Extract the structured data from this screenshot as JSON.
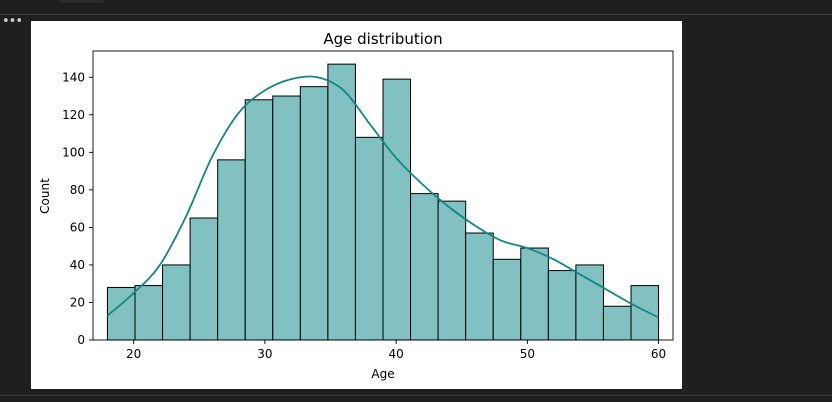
{
  "notebook": {
    "more_label": "•••"
  },
  "chart_data": {
    "type": "bar",
    "title": "Age distribution",
    "xlabel": "Age",
    "ylabel": "Count",
    "bin_edges": [
      18,
      20.1,
      22.2,
      24.3,
      26.4,
      28.5,
      30.6,
      32.7,
      34.8,
      36.9,
      39,
      41.1,
      43.2,
      45.3,
      47.4,
      49.5,
      51.6,
      53.7,
      55.8,
      57.9,
      60
    ],
    "counts": [
      28,
      29,
      40,
      65,
      96,
      128,
      130,
      135,
      147,
      108,
      139,
      78,
      74,
      57,
      43,
      49,
      37,
      40,
      18,
      29
    ],
    "kde": {
      "x": [
        18,
        20,
        22,
        24,
        26,
        28,
        30,
        32,
        34,
        36,
        38,
        40,
        42,
        44,
        46,
        48,
        50,
        52,
        54,
        56,
        58,
        60
      ],
      "y": [
        13,
        25,
        40,
        66,
        98,
        121,
        133,
        139,
        140,
        133,
        115,
        97,
        83,
        71,
        61,
        53,
        49,
        43,
        35,
        27,
        19,
        12
      ]
    },
    "xticks": [
      20,
      30,
      40,
      50,
      60
    ],
    "yticks": [
      0,
      20,
      40,
      60,
      80,
      100,
      120,
      140
    ],
    "xlim": [
      16.9,
      61.1
    ],
    "ylim": [
      0,
      154
    ],
    "colors": {
      "bar_fill": "#81c1c1",
      "bar_edge": "#000000",
      "kde_line": "#128787"
    },
    "grid": false,
    "legend": false
  }
}
